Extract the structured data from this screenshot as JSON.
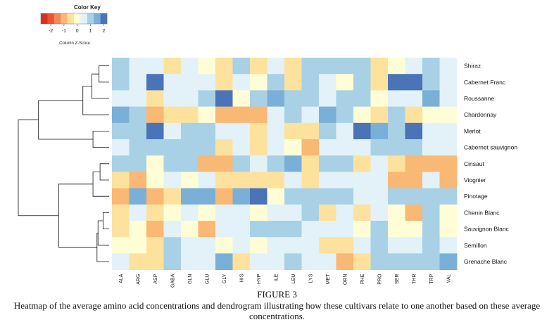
{
  "chart_data": {
    "type": "heatmap",
    "title": "",
    "xlabel": "",
    "ylabel": "",
    "columns": [
      "ALA",
      "ARG",
      "ASP",
      "GABA",
      "GLN",
      "GLU",
      "GLY",
      "HIS",
      "HYP",
      "ILE",
      "LEU",
      "LYS",
      "MET",
      "ORN",
      "PHE",
      "PRO",
      "SER",
      "THR",
      "TRP",
      "VAL"
    ],
    "rows": [
      "Shiraz",
      "Cabernet Franc",
      "Roussanne",
      "Chardonnay",
      "Merlot",
      "Cabernet sauvignon",
      "Cinsaut",
      "Viognier",
      "Pinotage",
      "Chenin Blanc",
      "Sauvignon Blanc",
      "Semillon",
      "Grenache Blanc"
    ],
    "values": [
      [
        1,
        0.5,
        0.5,
        -0.5,
        0.5,
        0,
        -0.5,
        1,
        -0.5,
        0.5,
        -0.5,
        1,
        1,
        1,
        1,
        -0.5,
        0,
        0.5,
        1,
        0.5
      ],
      [
        1,
        0.5,
        2,
        0.5,
        0.5,
        0.5,
        -0.5,
        0.5,
        0,
        1,
        -0.5,
        1,
        0.5,
        0,
        1,
        -0.5,
        2,
        2,
        1,
        0.5
      ],
      [
        0.5,
        0.5,
        -0.5,
        0.5,
        0.5,
        1,
        2,
        0,
        1,
        1.5,
        1,
        1,
        0.5,
        1,
        1,
        0,
        0.5,
        0.5,
        1.5,
        0.5
      ],
      [
        1.5,
        1,
        -1,
        -0.5,
        -0.5,
        0,
        -1,
        -1,
        -1,
        0.5,
        1,
        0.5,
        1.5,
        1,
        0,
        -0.5,
        1,
        -0.5,
        0,
        0
      ],
      [
        1,
        1,
        2,
        0.5,
        1,
        1,
        0.5,
        0.5,
        -0.5,
        0.5,
        -0.5,
        -0.5,
        1,
        0.5,
        2,
        1.5,
        1,
        2,
        0.5,
        0.5
      ],
      [
        0.5,
        1,
        1,
        1,
        1,
        1,
        -0.5,
        0.5,
        -0.5,
        0.5,
        0,
        -1,
        0.5,
        0.5,
        0.5,
        1,
        1,
        1,
        0.5,
        0.5
      ],
      [
        1,
        1,
        0,
        1,
        1,
        -1,
        -1,
        1,
        0.5,
        1,
        1.5,
        -0.5,
        1,
        1,
        -0.5,
        0.5,
        -0.5,
        -1,
        -1,
        -1
      ],
      [
        -0.5,
        -1,
        0,
        0.5,
        0,
        0.5,
        -0.5,
        -0.5,
        -0.5,
        -0.5,
        0.5,
        -0.5,
        0.5,
        0.5,
        0.5,
        0.5,
        -1,
        -1,
        0.5,
        -1
      ],
      [
        -1,
        1.5,
        -1,
        -0.5,
        1.5,
        1.5,
        -1,
        1.5,
        2,
        0,
        1,
        1,
        1,
        1,
        0.5,
        0.5,
        1,
        1,
        1,
        1
      ],
      [
        -0.5,
        0.5,
        -0.5,
        0,
        0.5,
        0,
        0.5,
        0.5,
        0,
        0.5,
        0.5,
        1,
        -0.5,
        0.5,
        -0.5,
        0.5,
        0,
        -1,
        1,
        0
      ],
      [
        -0.5,
        0,
        -1,
        0.5,
        0,
        -1,
        0.5,
        0.5,
        1,
        1,
        1,
        0.5,
        0.5,
        0.5,
        0,
        1,
        0,
        0,
        1,
        0
      ],
      [
        0,
        0,
        -0.5,
        1,
        0.5,
        0.5,
        0,
        0.5,
        0,
        0.5,
        0.5,
        0.5,
        -0.5,
        -0.5,
        0.5,
        1,
        0.5,
        0.5,
        1,
        0.5
      ],
      [
        0.5,
        -0.5,
        -0.5,
        1,
        0.5,
        0.5,
        1.5,
        -0.5,
        0.5,
        0.5,
        1,
        0.5,
        0.5,
        -1,
        -0.5,
        1,
        1,
        1,
        1,
        1.5
      ]
    ],
    "color_scale": {
      "stops": [
        {
          "value": -2.5,
          "color": "#d7301f"
        },
        {
          "value": -2,
          "color": "#e95532"
        },
        {
          "value": -1.5,
          "color": "#f4885a"
        },
        {
          "value": -1,
          "color": "#f9b873"
        },
        {
          "value": -0.5,
          "color": "#fde29e"
        },
        {
          "value": 0,
          "color": "#fffdd6"
        },
        {
          "value": 0.5,
          "color": "#e2f2f8"
        },
        {
          "value": 1,
          "color": "#a8d1e6"
        },
        {
          "value": 1.5,
          "color": "#7ab0d7"
        },
        {
          "value": 2,
          "color": "#4a73b8"
        }
      ],
      "legend_order": [
        -2.5,
        -2,
        -1.5,
        -1,
        -0.5,
        0,
        0.5,
        1,
        1.5,
        2
      ],
      "note": "high values map to blue, low values to red"
    },
    "color_key": {
      "title": "Color Key",
      "ticks": [
        "-2",
        "-1",
        "0",
        "1",
        "2"
      ],
      "label": "Column Z-Score"
    },
    "dendrogram": {
      "order": [
        "Shiraz",
        "Cabernet Franc",
        "Roussanne",
        "Chardonnay",
        "Merlot",
        "Cabernet sauvignon",
        "Cinsaut",
        "Viognier",
        "Pinotage",
        "Chenin Blanc",
        "Sauvignon Blanc",
        "Semillon",
        "Grenache Blanc"
      ],
      "merges": [
        {
          "id": "n1",
          "left": "Shiraz",
          "right": "Cabernet Franc",
          "height": 1.0
        },
        {
          "id": "n2",
          "left": "n1",
          "right": "Roussanne",
          "height": 1.7
        },
        {
          "id": "n3",
          "left": "n2",
          "right": "Chardonnay",
          "height": 2.6
        },
        {
          "id": "n4",
          "left": "Merlot",
          "right": "Cabernet sauvignon",
          "height": 1.6
        },
        {
          "id": "n5",
          "left": "n3",
          "right": "n4",
          "height": 7.0
        },
        {
          "id": "n6",
          "left": "Cinsaut",
          "right": "Viognier",
          "height": 0.9
        },
        {
          "id": "n7",
          "left": "n6",
          "right": "Pinotage",
          "height": 1.6
        },
        {
          "id": "n8",
          "left": "Chenin Blanc",
          "right": "Sauvignon Blanc",
          "height": 0.6
        },
        {
          "id": "n9",
          "left": "n8",
          "right": "Semillon",
          "height": 1.1
        },
        {
          "id": "n10",
          "left": "n9",
          "right": "Grenache Blanc",
          "height": 1.2
        },
        {
          "id": "n11",
          "left": "n7",
          "right": "n10",
          "height": 5.0
        },
        {
          "id": "n12",
          "left": "n5",
          "right": "n11",
          "height": 9.0
        }
      ]
    }
  },
  "caption": {
    "label": "FIGURE 3",
    "text": "Heatmap of the average amino acid concentrations and dendrogram illustrating how these cultivars relate to one another based on these average concentrations."
  }
}
